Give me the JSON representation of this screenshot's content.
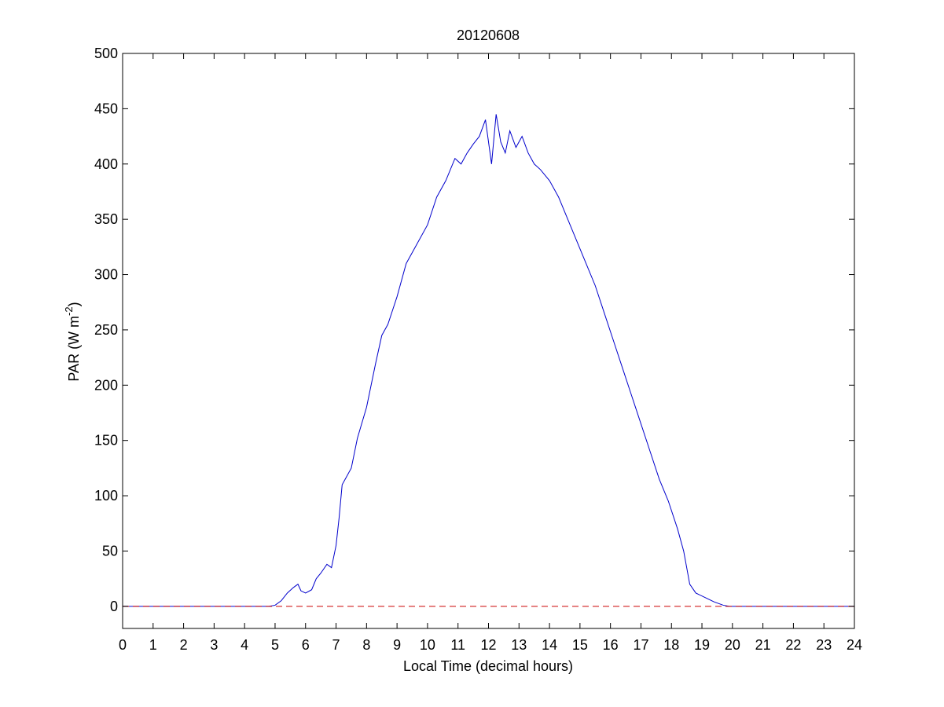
{
  "chart_data": {
    "type": "line",
    "title": "20120608",
    "xlabel": "Local Time (decimal hours)",
    "ylabel": {
      "prefix": "PAR (W m",
      "superscript": "-2",
      "suffix": ")"
    },
    "xlim": [
      0,
      24
    ],
    "ylim": [
      -20,
      500
    ],
    "x_ticks": [
      0,
      1,
      2,
      3,
      4,
      5,
      6,
      7,
      8,
      9,
      10,
      11,
      12,
      13,
      14,
      15,
      16,
      17,
      18,
      19,
      20,
      21,
      22,
      23,
      24
    ],
    "x_tick_labels": [
      "0",
      "1",
      "2",
      "3",
      "4",
      "5",
      "6",
      "7",
      "8",
      "9",
      "10",
      "11",
      "12",
      "13",
      "14",
      "15",
      "16",
      "17",
      "18",
      "19",
      "20",
      "21",
      "22",
      "23",
      "24"
    ],
    "y_ticks": [
      0,
      50,
      100,
      150,
      200,
      250,
      300,
      350,
      400,
      450,
      500
    ],
    "y_tick_labels": [
      "0",
      "50",
      "100",
      "150",
      "200",
      "250",
      "300",
      "350",
      "400",
      "450",
      "500"
    ],
    "grid": false,
    "series": [
      {
        "color": "#0000cc",
        "style": "solid",
        "x": [
          0,
          4.8,
          5.0,
          5.2,
          5.4,
          5.6,
          5.75,
          5.85,
          6.0,
          6.2,
          6.35,
          6.5,
          6.7,
          6.85,
          7.0,
          7.1,
          7.2,
          7.3,
          7.5,
          7.7,
          8.0,
          8.3,
          8.5,
          8.7,
          9.0,
          9.3,
          9.6,
          10.0,
          10.3,
          10.6,
          10.9,
          11.1,
          11.3,
          11.5,
          11.7,
          11.9,
          12.1,
          12.25,
          12.4,
          12.55,
          12.7,
          12.9,
          13.1,
          13.3,
          13.5,
          13.7,
          14.0,
          14.3,
          14.6,
          14.9,
          15.2,
          15.5,
          15.8,
          16.1,
          16.4,
          16.7,
          17.0,
          17.3,
          17.6,
          17.9,
          18.2,
          18.4,
          18.5,
          18.6,
          18.8,
          19.1,
          19.4,
          19.7,
          19.9,
          20.2,
          24
        ],
        "y": [
          0,
          0,
          1,
          5,
          12,
          17,
          20,
          14,
          12,
          15,
          25,
          30,
          38,
          35,
          55,
          80,
          110,
          115,
          125,
          152,
          180,
          220,
          245,
          255,
          280,
          310,
          325,
          345,
          370,
          385,
          405,
          400,
          410,
          418,
          425,
          440,
          400,
          445,
          420,
          410,
          430,
          415,
          425,
          410,
          400,
          395,
          385,
          370,
          350,
          330,
          310,
          290,
          265,
          240,
          215,
          190,
          165,
          140,
          115,
          95,
          70,
          50,
          35,
          20,
          12,
          8,
          4,
          1,
          0,
          0,
          0
        ]
      },
      {
        "color": "#cc0000",
        "style": "dashed",
        "x": [
          0,
          24
        ],
        "y": [
          0,
          0
        ]
      }
    ]
  }
}
